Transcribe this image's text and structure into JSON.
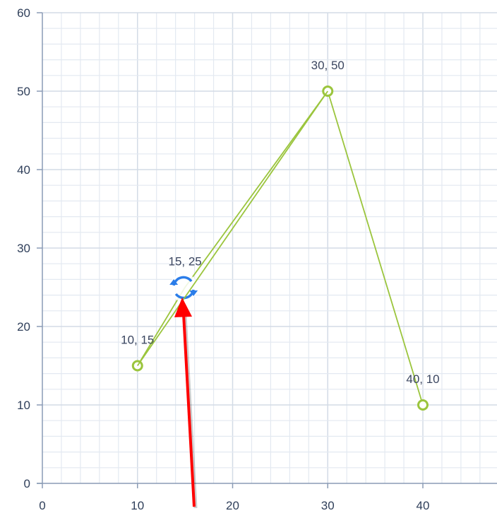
{
  "chart_data": {
    "type": "line",
    "title": "",
    "xlabel": "",
    "ylabel": "",
    "xlim": [
      0,
      47.8
    ],
    "ylim": [
      0,
      60
    ],
    "grid": true,
    "x_ticks": [
      "0",
      "10",
      "20",
      "30",
      "40"
    ],
    "y_ticks": [
      "0",
      "10",
      "20",
      "30",
      "40",
      "50",
      "60"
    ],
    "series": [
      {
        "points": [
          {
            "x": 10,
            "y": 15,
            "label": "10, 15"
          },
          {
            "x": 15,
            "y": 25,
            "label": "15, 25"
          },
          {
            "x": 30,
            "y": 50,
            "label": "30, 50"
          },
          {
            "x": 40,
            "y": 10,
            "label": "40, 10"
          }
        ]
      }
    ],
    "colors": {
      "line": "#9bc53d",
      "grid": "#e3e9f1",
      "major_grid": "#d3dbe6",
      "axis": "#8a9bb5",
      "rotate_icon": "#2b7de9",
      "arrow": "#ff0000"
    },
    "icons": {
      "active_point": "rotate-icon",
      "pointer": "red-arrow"
    }
  }
}
